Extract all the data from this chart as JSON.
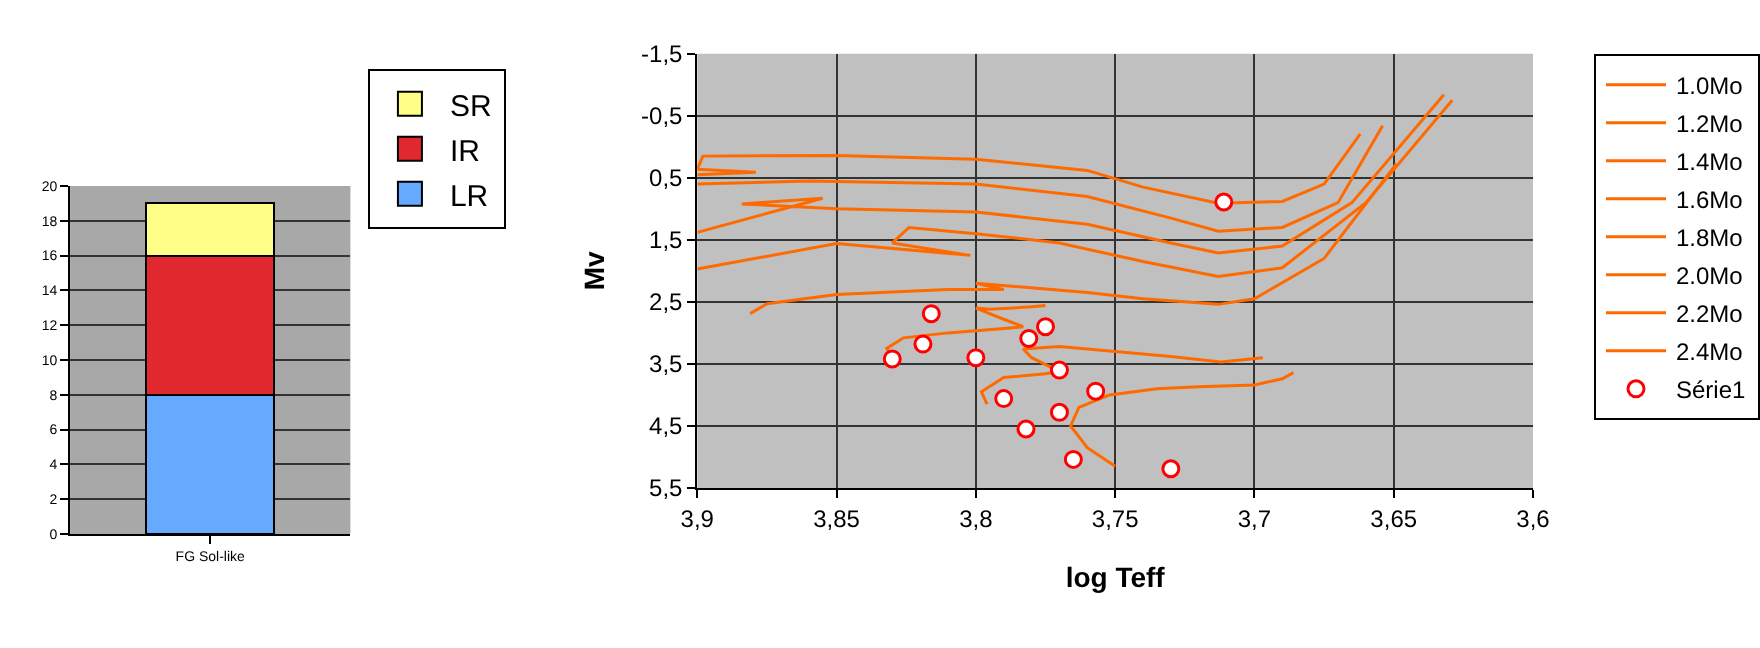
{
  "chart_data": [
    {
      "type": "bar",
      "stacked": true,
      "categories": [
        "FG Sol-like"
      ],
      "series": [
        {
          "name": "LR",
          "color": "#66aaff",
          "values": [
            8
          ]
        },
        {
          "name": "IR",
          "color": "#e0282e",
          "values": [
            8
          ]
        },
        {
          "name": "SR",
          "color": "#ffff88",
          "values": [
            3
          ]
        }
      ],
      "ylim": [
        0,
        20
      ],
      "yticks": [
        0,
        2,
        4,
        6,
        8,
        10,
        12,
        14,
        16,
        18,
        20
      ],
      "grid": "y",
      "legend": "top right"
    },
    {
      "type": "line",
      "xlabel": "log Teff",
      "ylabel": "Mv",
      "marker": "none",
      "grid": true,
      "legend": "right",
      "xlim": [
        3.9,
        3.6
      ],
      "xticks": [
        {
          "value": 3.9,
          "label": "3,9"
        },
        {
          "value": 3.85,
          "label": "3,85"
        },
        {
          "value": 3.8,
          "label": "3,8"
        },
        {
          "value": 3.75,
          "label": "3,75"
        },
        {
          "value": 3.7,
          "label": "3,7"
        },
        {
          "value": 3.65,
          "label": "3,65"
        },
        {
          "value": 3.6,
          "label": "3,6"
        }
      ],
      "ylim": [
        5.5,
        -1.5
      ],
      "yticks": [
        {
          "value": -1.5,
          "label": "-1,5"
        },
        {
          "value": -0.5,
          "label": "-0,5"
        },
        {
          "value": 0.5,
          "label": "0,5"
        },
        {
          "value": 1.5,
          "label": "1,5"
        },
        {
          "value": 2.5,
          "label": "2,5"
        },
        {
          "value": 3.5,
          "label": "3,5"
        },
        {
          "value": 4.5,
          "label": "4,5"
        },
        {
          "value": 5.5,
          "label": "5,5"
        }
      ],
      "series": [
        {
          "name": "1.0Mo",
          "color": "#ff6a00",
          "x": [
            3.75,
            3.76,
            3.766,
            3.763,
            3.752,
            3.735,
            3.72,
            3.7,
            3.69,
            3.686
          ],
          "values": [
            5.15,
            4.85,
            4.5,
            4.2,
            4.0,
            3.9,
            3.87,
            3.84,
            3.74,
            3.64
          ]
        },
        {
          "name": "1.2Mo",
          "color": "#ff6a00",
          "x": [
            3.796,
            3.798,
            3.79,
            3.775,
            3.77,
            3.78,
            3.783,
            3.77,
            3.75,
            3.73,
            3.712,
            3.697
          ],
          "values": [
            4.15,
            3.95,
            3.72,
            3.66,
            3.62,
            3.4,
            3.26,
            3.22,
            3.3,
            3.38,
            3.47,
            3.4
          ]
        },
        {
          "name": "1.4Mo",
          "color": "#ff6a00",
          "x": [
            3.83,
            3.832,
            3.826,
            3.81,
            3.79,
            3.783,
            3.79,
            3.8,
            3.795,
            3.78,
            3.775
          ],
          "values": [
            3.43,
            3.25,
            3.08,
            3.0,
            2.93,
            2.9,
            2.78,
            2.6,
            2.62,
            2.58,
            2.56
          ]
        },
        {
          "name": "1.6Mo",
          "color": "#ff6a00",
          "x": [
            3.881,
            3.875,
            3.85,
            3.81,
            3.79,
            3.8,
            3.76,
            3.74,
            3.713,
            3.7,
            3.675,
            3.649
          ],
          "values": [
            2.69,
            2.53,
            2.38,
            2.3,
            2.3,
            2.2,
            2.35,
            2.45,
            2.54,
            2.45,
            1.8,
            0.27
          ]
        },
        {
          "name": "1.8Mo",
          "color": "#ff6a00",
          "x": [
            3.9,
            3.85,
            3.802,
            3.83,
            3.824,
            3.8,
            3.77,
            3.74,
            3.713,
            3.69,
            3.66,
            3.629
          ],
          "values": [
            1.97,
            1.56,
            1.75,
            1.55,
            1.3,
            1.4,
            1.55,
            1.85,
            2.09,
            1.95,
            0.9,
            -0.75
          ]
        },
        {
          "name": "2.0Mo",
          "color": "#ff6a00",
          "x": [
            3.9,
            3.855,
            3.884,
            3.85,
            3.8,
            3.76,
            3.73,
            3.713,
            3.69,
            3.665,
            3.632
          ],
          "values": [
            1.38,
            0.83,
            0.92,
            1.0,
            1.05,
            1.25,
            1.55,
            1.71,
            1.6,
            0.9,
            -0.84
          ]
        },
        {
          "name": "2.2Mo",
          "color": "#ff6a00",
          "x": [
            3.9,
            3.86,
            3.8,
            3.76,
            3.73,
            3.713,
            3.69,
            3.67,
            3.654
          ],
          "values": [
            0.6,
            0.55,
            0.6,
            0.8,
            1.15,
            1.36,
            1.3,
            0.9,
            -0.34
          ]
        },
        {
          "name": "2.4Mo",
          "color": "#ff6a00",
          "x": [
            3.9,
            3.879,
            3.9,
            3.898,
            3.85,
            3.8,
            3.76,
            3.74,
            3.713,
            3.69,
            3.675,
            3.662
          ],
          "values": [
            0.45,
            0.41,
            0.36,
            0.15,
            0.14,
            0.2,
            0.38,
            0.65,
            0.91,
            0.88,
            0.6,
            -0.21
          ]
        },
        {
          "name": "Série1",
          "type": "scatter",
          "marker": "circle",
          "color": "#ff0000",
          "x": [
            3.83,
            3.816,
            3.819,
            3.8,
            3.79,
            3.781,
            3.775,
            3.77,
            3.782,
            3.77,
            3.765,
            3.757,
            3.73,
            3.711
          ],
          "values": [
            3.42,
            2.69,
            3.18,
            3.4,
            4.06,
            3.09,
            2.9,
            3.6,
            4.55,
            4.28,
            5.04,
            3.94,
            5.19,
            0.89
          ]
        }
      ]
    }
  ]
}
